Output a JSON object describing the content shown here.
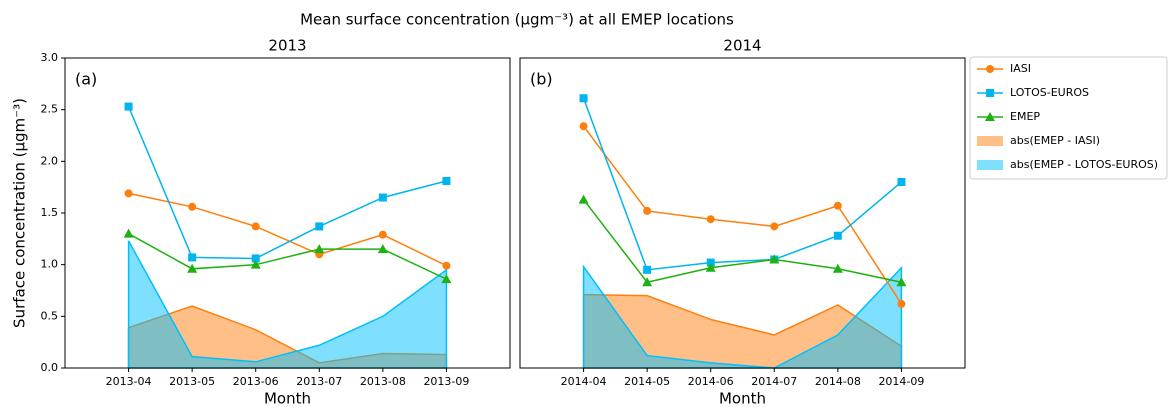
{
  "title": "Mean surface concentration (μgm⁻³) at all EMEP locations",
  "chart_data": [
    {
      "type": "line",
      "title": "2013",
      "annotation": "(a)",
      "xlabel": "Month",
      "ylabel": "Surface concentration (μgm⁻³)",
      "categories": [
        "2013-04",
        "2013-05",
        "2013-06",
        "2013-07",
        "2013-08",
        "2013-09"
      ],
      "ylim": [
        0,
        3
      ],
      "yticks": [
        {
          "value": 0,
          "label": "0.0"
        },
        {
          "value": 0.5,
          "label": "0.5"
        },
        {
          "value": 1,
          "label": "1.0"
        },
        {
          "value": 1.5,
          "label": "1.5"
        },
        {
          "value": 2,
          "label": "2.0"
        },
        {
          "value": 2.5,
          "label": "2.5"
        },
        {
          "value": 3,
          "label": "3.0"
        }
      ],
      "series": [
        {
          "name": "IASI",
          "type": "line",
          "marker": "circle",
          "color": "#ff7f0e",
          "values": [
            1.69,
            1.56,
            1.37,
            1.1,
            1.29,
            0.99
          ]
        },
        {
          "name": "LOTOS-EUROS",
          "type": "line",
          "marker": "square",
          "color": "#00b4f0",
          "values": [
            2.53,
            1.07,
            1.06,
            1.37,
            1.65,
            1.81
          ]
        },
        {
          "name": "EMEP",
          "type": "line",
          "marker": "triangle",
          "color": "#1fb012",
          "values": [
            1.3,
            0.96,
            1.0,
            1.15,
            1.15,
            0.86
          ]
        },
        {
          "name": "abs(EMEP - IASI)",
          "type": "area",
          "color": "#ff7f0e",
          "values": [
            0.39,
            0.6,
            0.37,
            0.05,
            0.14,
            0.13
          ]
        },
        {
          "name": "abs(EMEP - LOTOS-EUROS)",
          "type": "area",
          "color": "#00bfff",
          "values": [
            1.23,
            0.11,
            0.06,
            0.22,
            0.5,
            0.95
          ]
        }
      ]
    },
    {
      "type": "line",
      "title": "2014",
      "annotation": "(b)",
      "xlabel": "Month",
      "categories": [
        "2014-04",
        "2014-05",
        "2014-06",
        "2014-07",
        "2014-08",
        "2014-09"
      ],
      "ylim": [
        0,
        3
      ],
      "series": [
        {
          "name": "IASI",
          "type": "line",
          "marker": "circle",
          "color": "#ff7f0e",
          "values": [
            2.34,
            1.52,
            1.44,
            1.37,
            1.57,
            0.62
          ]
        },
        {
          "name": "LOTOS-EUROS",
          "type": "line",
          "marker": "square",
          "color": "#00b4f0",
          "values": [
            2.61,
            0.95,
            1.02,
            1.05,
            1.28,
            1.8
          ]
        },
        {
          "name": "EMEP",
          "type": "line",
          "marker": "triangle",
          "color": "#1fb012",
          "values": [
            1.63,
            0.83,
            0.97,
            1.05,
            0.96,
            0.83
          ]
        },
        {
          "name": "abs(EMEP - IASI)",
          "type": "area",
          "color": "#ff7f0e",
          "values": [
            0.71,
            0.7,
            0.47,
            0.32,
            0.61,
            0.21
          ]
        },
        {
          "name": "abs(EMEP - LOTOS-EUROS)",
          "type": "area",
          "color": "#00bfff",
          "values": [
            0.98,
            0.12,
            0.05,
            0.0,
            0.32,
            0.97
          ]
        }
      ]
    }
  ]
}
